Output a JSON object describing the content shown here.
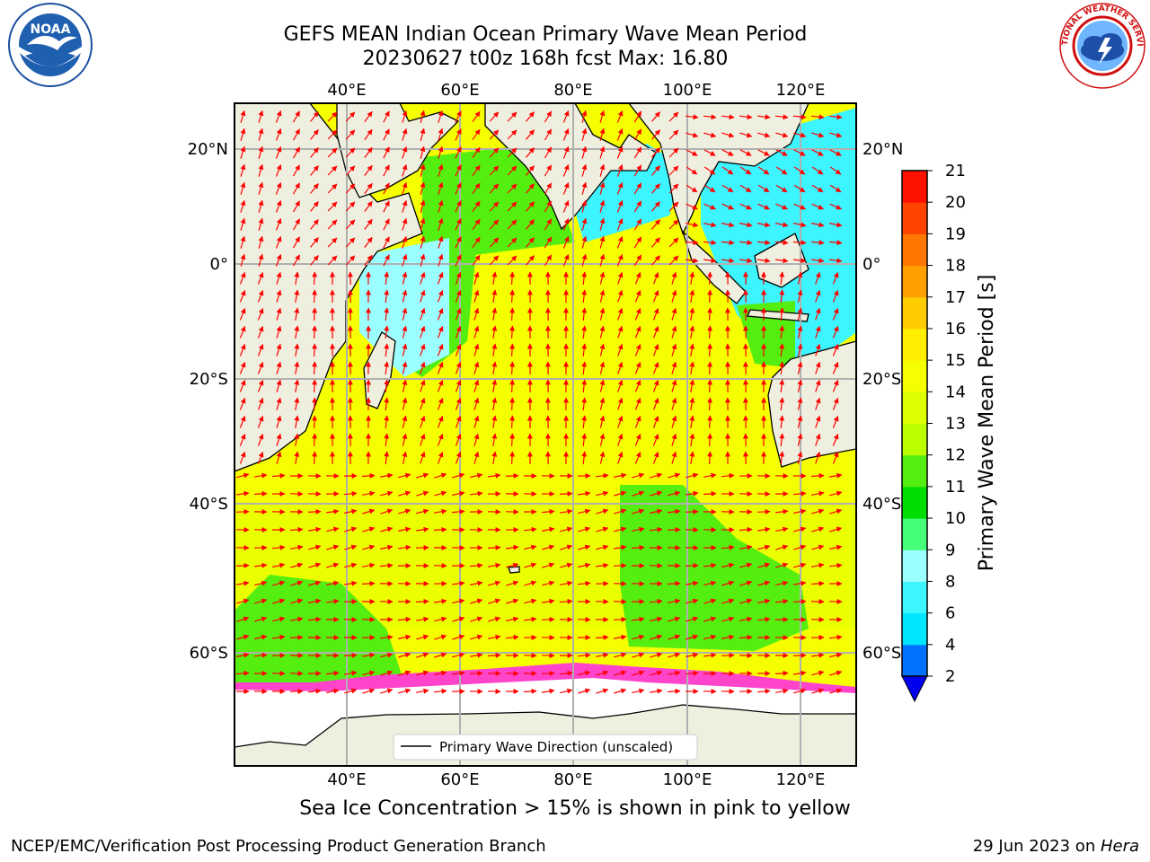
{
  "title": {
    "line1": "GEFS MEAN Indian Ocean Primary Wave Mean Period",
    "line2": "20230627 t00z 168h fcst   Max: 16.80"
  },
  "logos": {
    "noara_text": "NOAA",
    "noaa_ring_top": "NATIONAL OCEANIC AND ATMOSPHERIC ADMINISTRATION",
    "noaa_ring_bottom": "U.S. DEPARTMENT OF COMMERCE",
    "nws_ring": "NATIONAL WEATHER SERVICE"
  },
  "map": {
    "lon_ticks": [
      "40°E",
      "60°E",
      "80°E",
      "100°E",
      "120°E"
    ],
    "lat_ticks": [
      "20°N",
      "0°",
      "20°S",
      "40°S",
      "60°S"
    ],
    "legend_label": "Primary Wave Direction (unscaled)",
    "max_value": 16.8
  },
  "colorbar": {
    "label": "Primary Wave Mean Period [s]",
    "ticks": [
      "2",
      "4",
      "6",
      "8",
      "9",
      "10",
      "11",
      "12",
      "13",
      "14",
      "15",
      "16",
      "17",
      "18",
      "19",
      "20",
      "21"
    ],
    "colors": [
      "#0072ff",
      "#00e6ff",
      "#3cf5ff",
      "#9cffff",
      "#44ff77",
      "#00dd00",
      "#55ee11",
      "#bbff00",
      "#ddff00",
      "#f5ff00",
      "#ffee00",
      "#ffcc00",
      "#ffa000",
      "#ff7700",
      "#ff4400",
      "#ff1100"
    ],
    "under_color": "#0000ee"
  },
  "captions": {
    "ice": "Sea Ice Concentration > 15% is shown in pink to yellow",
    "footer_left": "NCEP/EMC/Verification Post Processing Product Generation Branch",
    "footer_right_date": "29 Jun 2023 on ",
    "footer_right_host": "Hera"
  },
  "colors": {
    "land": "#efefdf",
    "ocean_main": "#f5ff00",
    "ocean_green": "#55ee11",
    "ocean_cyan": "#3cf5ff",
    "ice": "#ffffff",
    "ice_edge": "#ff44cc",
    "arrow": "#ff0000"
  }
}
